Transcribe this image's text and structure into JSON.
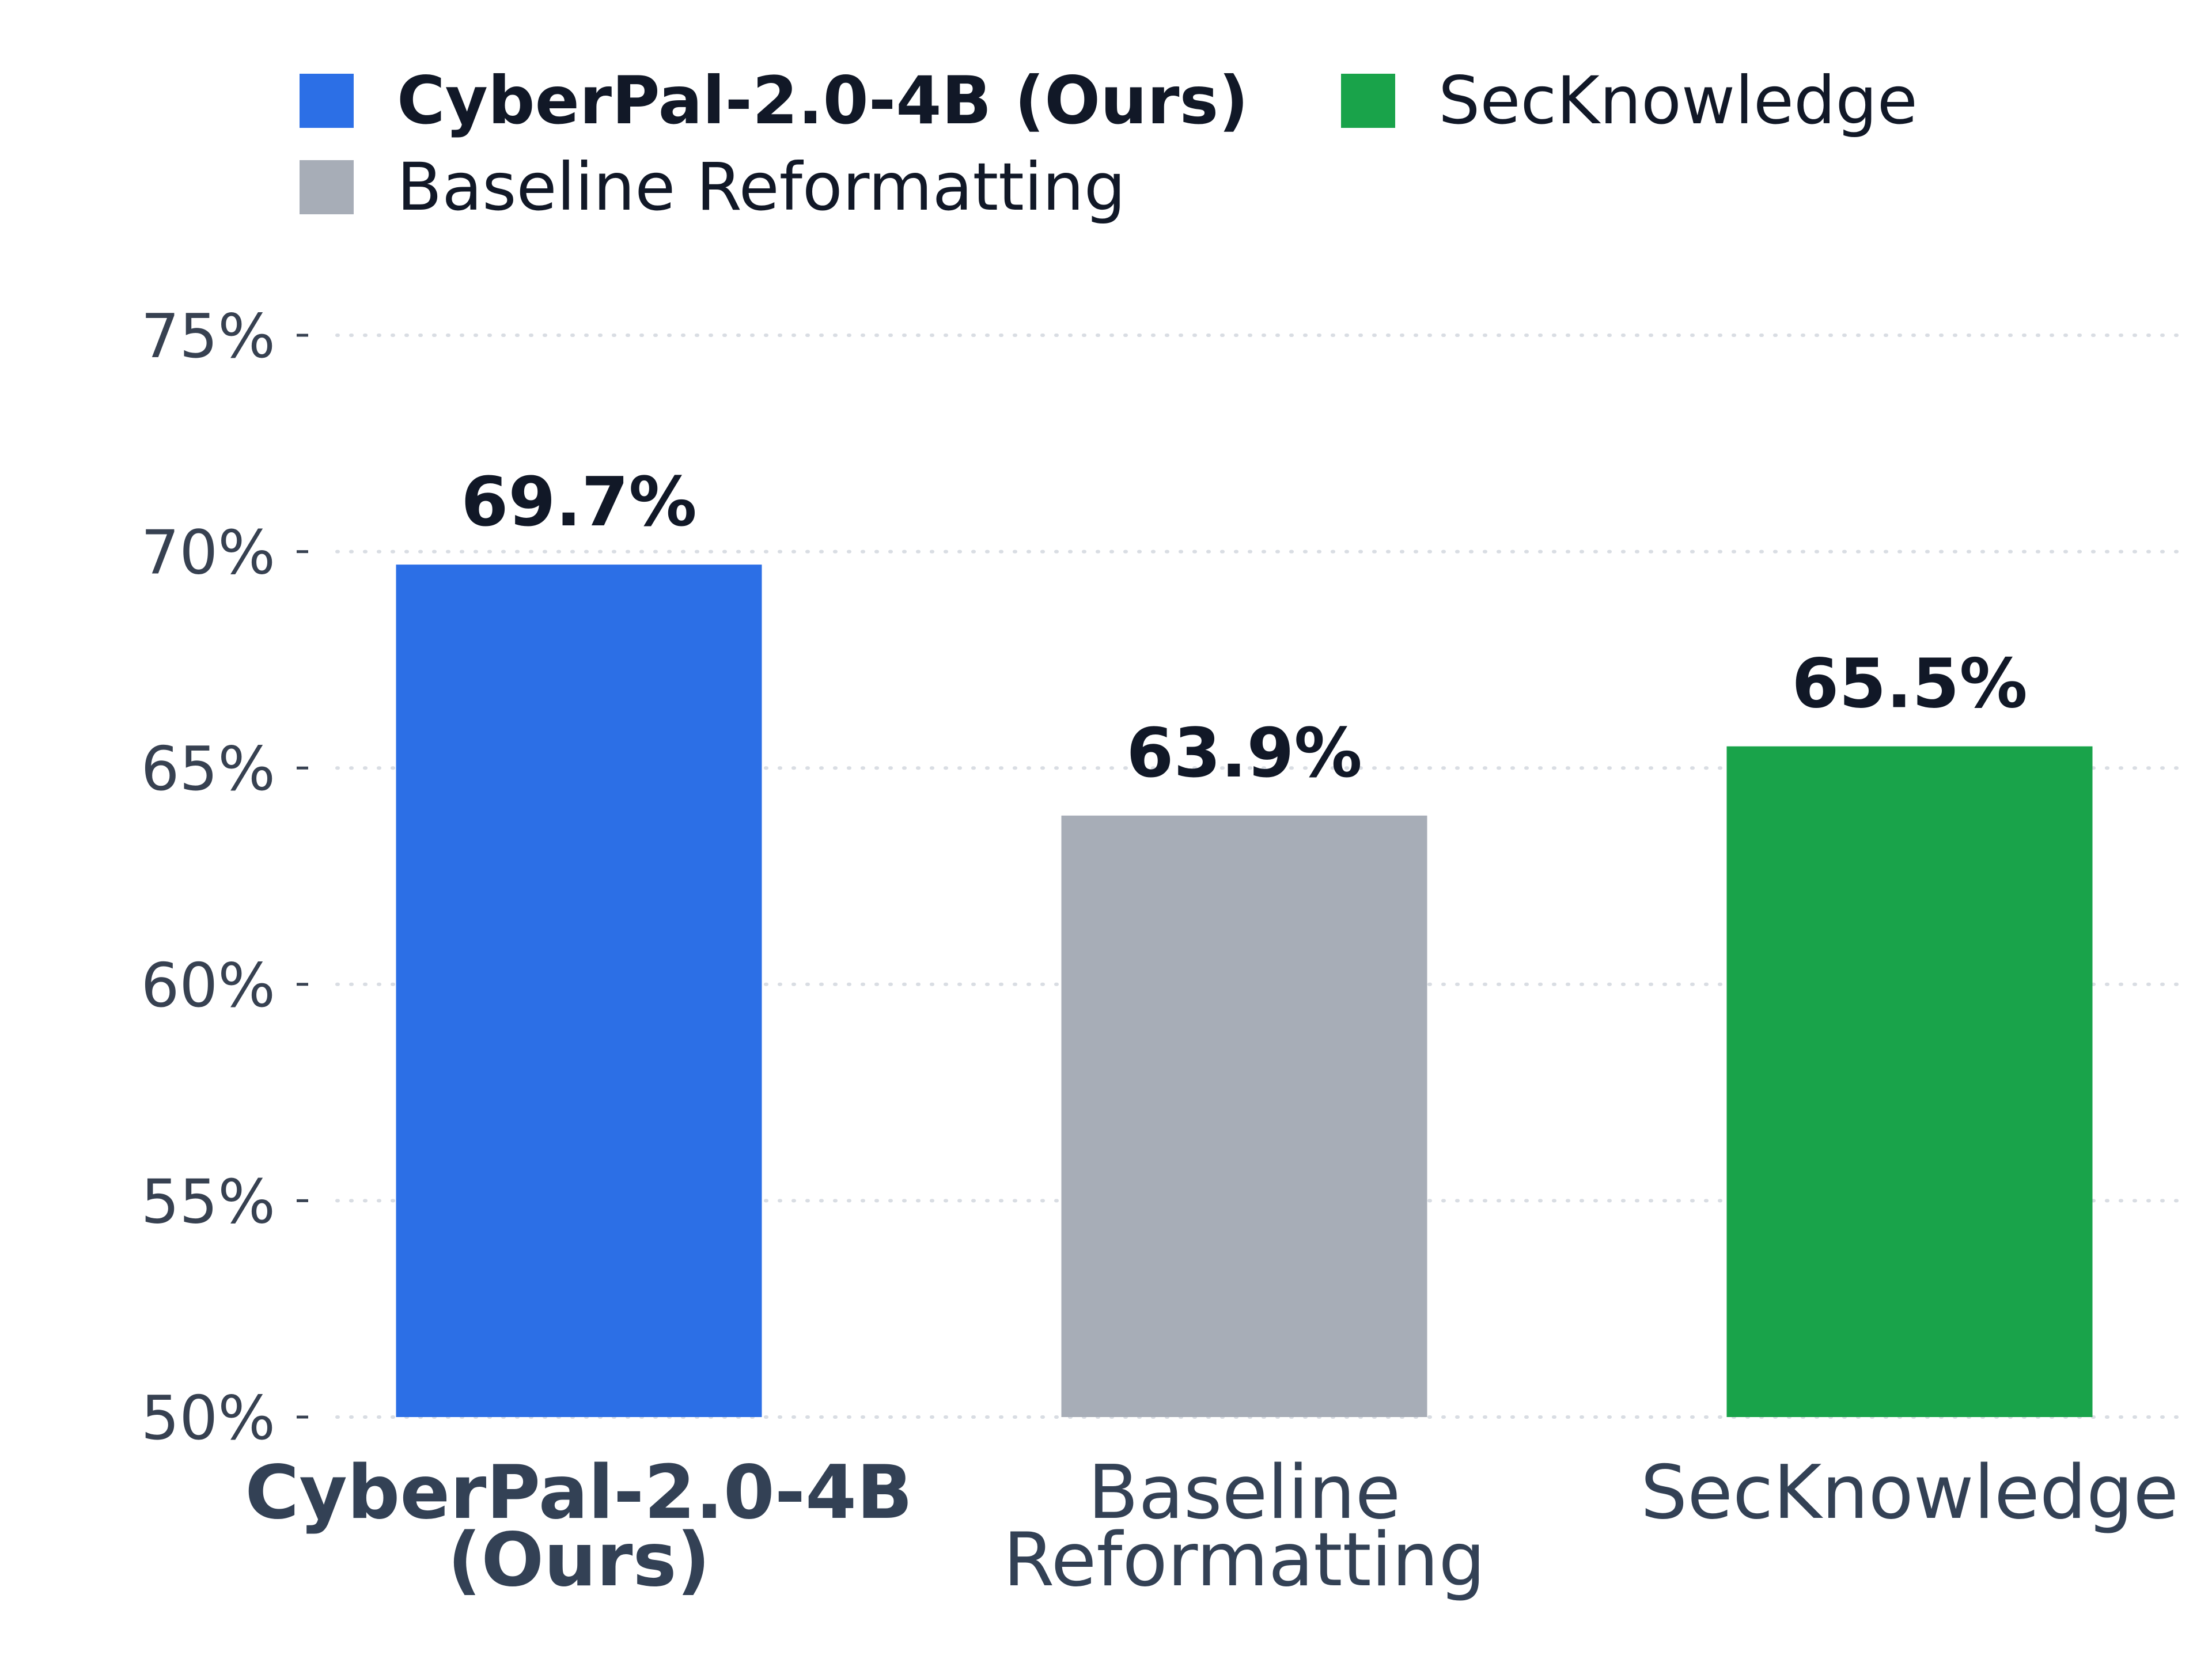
{
  "chart_data": {
    "type": "bar",
    "title": "",
    "xlabel": "",
    "ylabel": "",
    "categories": [
      "CyberPal-2.0-4B (Ours)",
      "Baseline Reformatting",
      "SecKnowledge"
    ],
    "category_lines": [
      [
        "CyberPal-2.0-4B",
        "(Ours)"
      ],
      [
        "Baseline",
        "Reformatting"
      ],
      [
        "SecKnowledge"
      ]
    ],
    "values": [
      69.7,
      63.9,
      65.5
    ],
    "data_labels": [
      "69.7%",
      "63.9%",
      "65.5%"
    ],
    "colors": [
      "#2c6fe6",
      "#a7adb7",
      "#19a34a"
    ],
    "highlight": [
      true,
      false,
      false
    ],
    "ylim": [
      50,
      75
    ],
    "yticks": [
      50,
      55,
      60,
      65,
      70,
      75
    ],
    "ytick_labels": [
      "50%",
      "55%",
      "60%",
      "65%",
      "70%",
      "75%"
    ],
    "grid": "horizontal dotted",
    "legend": {
      "placement": "top-left",
      "entries": [
        {
          "label": "CyberPal-2.0-4B (Ours)",
          "color": "#2c6fe6",
          "bold": true
        },
        {
          "label": "SecKnowledge",
          "color": "#19a34a",
          "bold": false
        },
        {
          "label": "Baseline Reformatting",
          "color": "#a7adb7",
          "bold": false
        }
      ]
    }
  }
}
